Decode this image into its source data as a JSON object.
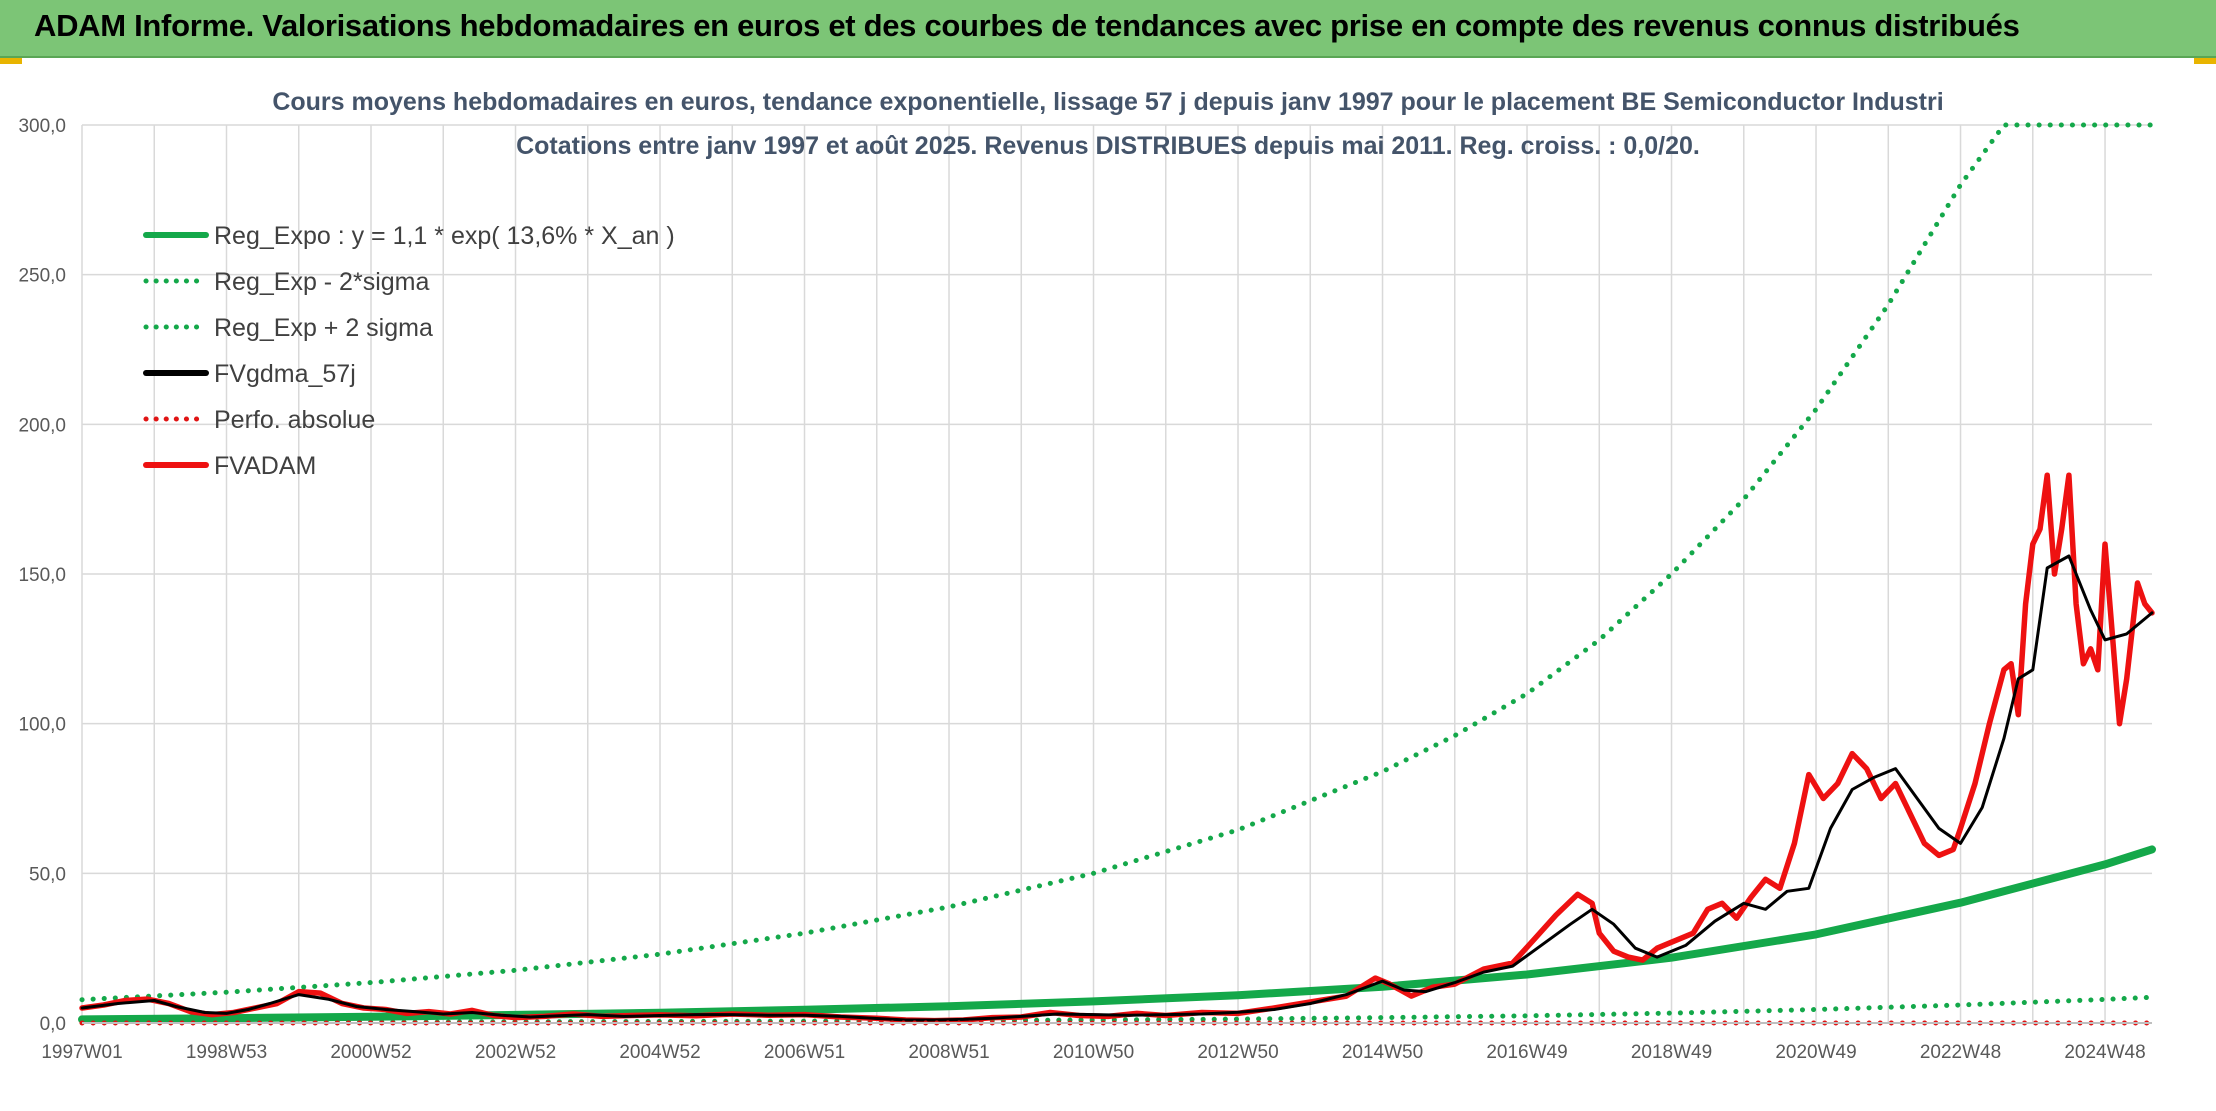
{
  "header": {
    "title": "ADAM Informe. Valorisations hebdomadaires en euros et des courbes de tendances avec prise en compte des revenus connus distribués"
  },
  "chart_data": {
    "type": "line",
    "title": "Cours moyens hebdomadaires en euros, tendance exponentielle, lissage 57 j depuis janv 1997 pour le placement BE Semiconductor Industri",
    "subtitle": "Cotations entre janv 1997 et août 2025. Revenus DISTRIBUES depuis mai 2011. Reg. croiss. : 0,0/20.",
    "xlabel": "",
    "ylabel": "",
    "ylim": [
      0,
      300
    ],
    "xlim": [
      1997.0,
      2025.65
    ],
    "y_ticks": [
      "0,0",
      "50,0",
      "100,0",
      "150,0",
      "200,0",
      "250,0",
      "300,0"
    ],
    "x_ticks": [
      {
        "label": "1997W01",
        "t": 1997.0
      },
      {
        "label": "1998W53",
        "t": 1999.0
      },
      {
        "label": "2000W52",
        "t": 2001.0
      },
      {
        "label": "2002W52",
        "t": 2003.0
      },
      {
        "label": "2004W52",
        "t": 2005.0
      },
      {
        "label": "2006W51",
        "t": 2007.0
      },
      {
        "label": "2008W51",
        "t": 2009.0
      },
      {
        "label": "2010W50",
        "t": 2011.0
      },
      {
        "label": "2012W50",
        "t": 2013.0
      },
      {
        "label": "2014W50",
        "t": 2015.0
      },
      {
        "label": "2016W49",
        "t": 2017.0
      },
      {
        "label": "2018W49",
        "t": 2019.0
      },
      {
        "label": "2020W49",
        "t": 2021.0
      },
      {
        "label": "2022W48",
        "t": 2023.0
      },
      {
        "label": "2024W48",
        "t": 2025.0
      }
    ],
    "grid": true,
    "legend_position": "top-left",
    "series": [
      {
        "name": "Reg_Expo : y = 1,1 * exp( 13,6% *  X_an )",
        "style": "solid-thick",
        "color": "#14a84a",
        "x": [
          1997.0,
          1999.0,
          2001.0,
          2003.0,
          2005.0,
          2007.0,
          2009.0,
          2011.0,
          2013.0,
          2015.0,
          2017.0,
          2019.0,
          2021.0,
          2023.0,
          2025.0,
          2025.65
        ],
        "y": [
          1.2,
          1.6,
          2.1,
          2.7,
          3.4,
          4.4,
          5.6,
          7.2,
          9.3,
          12.1,
          16.2,
          21.8,
          29.6,
          40.2,
          53.0,
          58.0
        ]
      },
      {
        "name": "Reg_Exp - 2*sigma",
        "style": "dotted",
        "color": "#14a84a",
        "x": [
          1997.0,
          1999.0,
          2001.0,
          2003.0,
          2005.0,
          2007.0,
          2009.0,
          2011.0,
          2013.0,
          2015.0,
          2017.0,
          2019.0,
          2021.0,
          2023.0,
          2025.0,
          2025.65
        ],
        "y": [
          0.2,
          0.25,
          0.3,
          0.4,
          0.5,
          0.6,
          0.8,
          1.0,
          1.3,
          1.8,
          2.4,
          3.3,
          4.5,
          6.0,
          7.9,
          8.6
        ]
      },
      {
        "name": "Reg_Exp + 2 sigma",
        "style": "dotted",
        "color": "#14a84a",
        "x": [
          1997.0,
          1999.0,
          2001.0,
          2003.0,
          2005.0,
          2007.0,
          2009.0,
          2011.0,
          2013.0,
          2015.0,
          2016.0,
          2017.0,
          2018.0,
          2019.0,
          2020.0,
          2021.0,
          2022.0,
          2023.0,
          2023.6,
          2024.0,
          2025.0,
          2025.65
        ],
        "y": [
          7.8,
          10.3,
          13.5,
          17.6,
          23.0,
          30.0,
          38.8,
          50.0,
          64.5,
          84.0,
          96.0,
          110.0,
          128.0,
          150.0,
          175.0,
          205.0,
          240.0,
          280.0,
          300.0,
          300.0,
          300.0,
          300.0
        ]
      },
      {
        "name": "FVgdma_57j",
        "style": "solid",
        "color": "#000000",
        "x": [
          1997.0,
          1997.5,
          1998.0,
          1998.3,
          1998.7,
          1999.0,
          1999.3,
          1999.6,
          2000.0,
          2000.4,
          2000.8,
          2001.2,
          2001.6,
          2002.0,
          2002.4,
          2002.8,
          2003.2,
          2003.6,
          2004.0,
          2004.5,
          2005.0,
          2005.5,
          2006.0,
          2006.5,
          2007.0,
          2007.5,
          2008.0,
          2008.4,
          2008.8,
          2009.2,
          2009.6,
          2010.0,
          2010.5,
          2011.0,
          2011.5,
          2012.0,
          2012.5,
          2013.0,
          2013.5,
          2014.0,
          2014.5,
          2015.0,
          2015.3,
          2015.6,
          2016.0,
          2016.4,
          2016.8,
          2017.2,
          2017.6,
          2017.9,
          2018.2,
          2018.5,
          2018.8,
          2019.2,
          2019.6,
          2020.0,
          2020.3,
          2020.6,
          2020.9,
          2021.2,
          2021.5,
          2021.8,
          2022.1,
          2022.4,
          2022.7,
          2023.0,
          2023.3,
          2023.6,
          2023.8,
          2024.0,
          2024.2,
          2024.5,
          2024.8,
          2025.0,
          2025.3,
          2025.65
        ],
        "y": [
          5.0,
          6.5,
          7.5,
          5.5,
          3.5,
          3.2,
          4.5,
          6.5,
          9.5,
          8.0,
          5.5,
          4.5,
          3.8,
          3.0,
          3.5,
          2.6,
          2.0,
          2.4,
          2.8,
          2.2,
          2.5,
          2.8,
          2.8,
          2.6,
          2.6,
          2.2,
          1.5,
          1.0,
          1.0,
          1.2,
          1.6,
          2.2,
          3.0,
          2.8,
          2.6,
          2.8,
          3.0,
          3.6,
          4.5,
          6.5,
          9.5,
          14.0,
          11.0,
          10.5,
          13.5,
          17.0,
          19.0,
          26.0,
          33.0,
          38.0,
          33.0,
          25.0,
          22.0,
          26.0,
          34.0,
          40.0,
          38.0,
          44.0,
          45.0,
          65.0,
          78.0,
          82.0,
          85.0,
          75.0,
          65.0,
          60.0,
          72.0,
          95.0,
          115.0,
          118.0,
          152.0,
          156.0,
          138.0,
          128.0,
          130.0,
          137.0
        ]
      },
      {
        "name": "Perfo. absolue",
        "style": "dotted",
        "color": "#e01414",
        "x": [
          1997.0,
          2001.0,
          2005.0,
          2009.0,
          2013.0,
          2017.0,
          2021.0,
          2025.65
        ],
        "y": [
          0.0,
          0.0,
          0.0,
          0.0,
          0.0,
          0.0,
          0.0,
          0.0
        ]
      },
      {
        "name": "FVADAM",
        "style": "solid-thick",
        "color": "#ee1111",
        "x": [
          1997.0,
          1997.3,
          1997.6,
          1997.9,
          1998.2,
          1998.5,
          1998.8,
          1999.1,
          1999.4,
          1999.7,
          2000.0,
          2000.3,
          2000.6,
          2000.9,
          2001.2,
          2001.5,
          2001.8,
          2002.1,
          2002.4,
          2002.7,
          2003.0,
          2003.4,
          2003.8,
          2004.2,
          2004.6,
          2005.0,
          2005.5,
          2006.0,
          2006.5,
          2007.0,
          2007.5,
          2008.0,
          2008.4,
          2008.8,
          2009.2,
          2009.6,
          2010.0,
          2010.4,
          2010.8,
          2011.2,
          2011.6,
          2012.0,
          2012.5,
          2013.0,
          2013.5,
          2014.0,
          2014.5,
          2014.9,
          2015.1,
          2015.4,
          2015.7,
          2016.0,
          2016.4,
          2016.8,
          2017.1,
          2017.4,
          2017.7,
          2017.9,
          2018.0,
          2018.2,
          2018.4,
          2018.6,
          2018.8,
          2019.0,
          2019.3,
          2019.5,
          2019.7,
          2019.9,
          2020.1,
          2020.3,
          2020.5,
          2020.7,
          2020.9,
          2021.1,
          2021.3,
          2021.5,
          2021.7,
          2021.9,
          2022.1,
          2022.3,
          2022.5,
          2022.7,
          2022.9,
          2023.0,
          2023.2,
          2023.4,
          2023.6,
          2023.7,
          2023.8,
          2023.9,
          2024.0,
          2024.1,
          2024.2,
          2024.3,
          2024.4,
          2024.5,
          2024.6,
          2024.7,
          2024.8,
          2024.9,
          2025.0,
          2025.1,
          2025.2,
          2025.3,
          2025.45,
          2025.55,
          2025.65
        ],
        "y": [
          5.0,
          6.0,
          7.5,
          8.0,
          6.5,
          3.8,
          2.8,
          3.5,
          5.0,
          6.5,
          10.5,
          10.0,
          6.5,
          5.0,
          4.5,
          3.2,
          3.8,
          3.0,
          4.2,
          2.5,
          1.8,
          2.2,
          3.0,
          2.2,
          2.5,
          2.7,
          2.4,
          3.0,
          2.6,
          2.8,
          2.0,
          1.6,
          1.0,
          0.8,
          1.0,
          1.8,
          2.0,
          3.5,
          2.5,
          2.2,
          3.2,
          2.5,
          3.5,
          3.2,
          5.0,
          7.0,
          9.0,
          15.0,
          13.0,
          9.0,
          12.0,
          13.0,
          18.0,
          20.0,
          28.0,
          36.0,
          43.0,
          40.0,
          30.0,
          24.0,
          22.0,
          21.0,
          25.0,
          27.0,
          30.0,
          38.0,
          40.0,
          35.0,
          42.0,
          48.0,
          45.0,
          60.0,
          83.0,
          75.0,
          80.0,
          90.0,
          85.0,
          75.0,
          80.0,
          70.0,
          60.0,
          56.0,
          58.0,
          65.0,
          80.0,
          100.0,
          118.0,
          120.0,
          103.0,
          140.0,
          160.0,
          165.0,
          183.0,
          150.0,
          165.0,
          183.0,
          140.0,
          120.0,
          125.0,
          118.0,
          160.0,
          130.0,
          100.0,
          115.0,
          147.0,
          140.0,
          137.0
        ]
      }
    ]
  }
}
